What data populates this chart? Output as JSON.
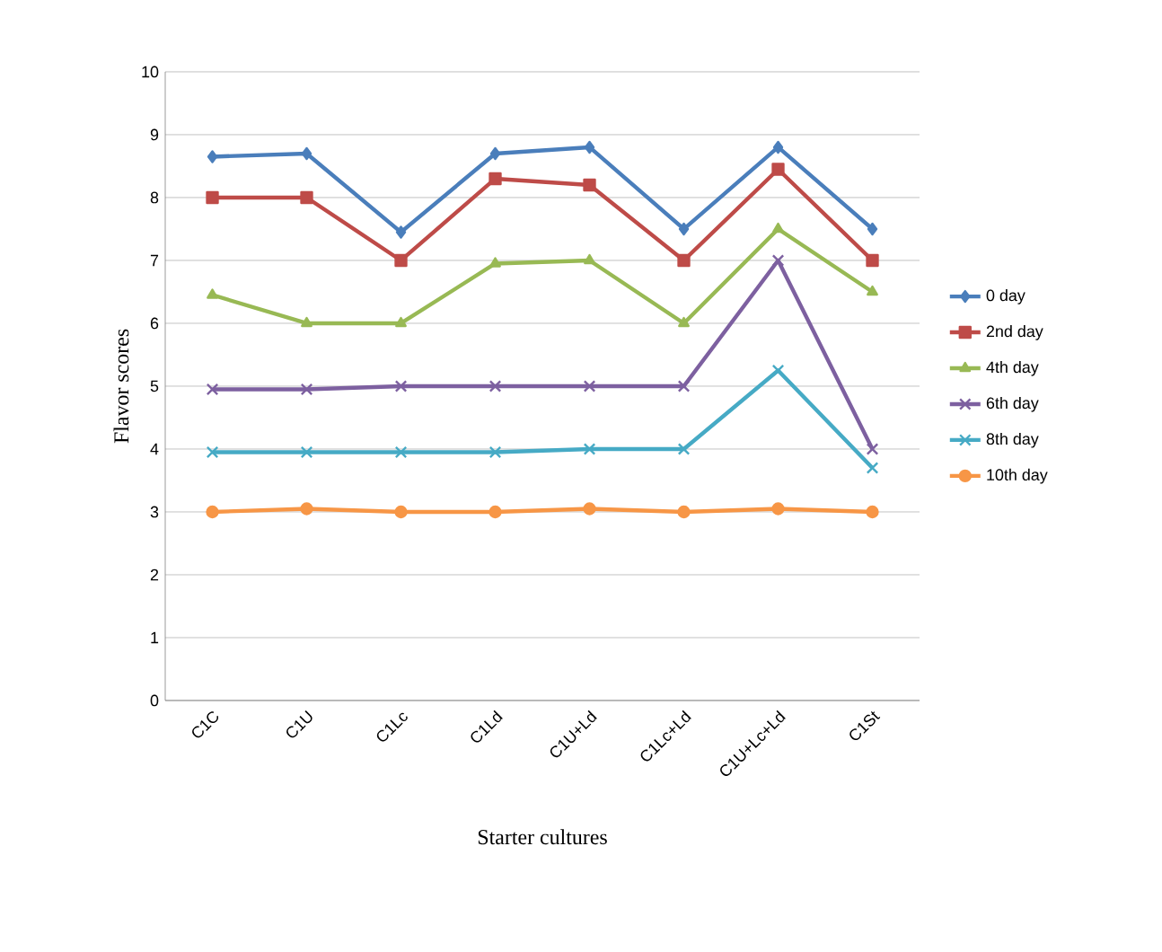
{
  "chart_data": {
    "type": "line",
    "xlabel": "Starter cultures",
    "ylabel": "Flavor scores",
    "categories": [
      "C1C",
      "C1U",
      "C1Lc",
      "C1Ld",
      "C1U+Ld",
      "C1Lc+Ld",
      "C1U+Lc+Ld",
      "C1St"
    ],
    "ylim": [
      0,
      10
    ],
    "yticks": [
      0,
      1,
      2,
      3,
      4,
      5,
      6,
      7,
      8,
      9,
      10
    ],
    "grid": "y",
    "legend": "right",
    "line_style": "solid",
    "series": [
      {
        "name": "0 day",
        "color": "#4a7ebb",
        "marker": "diamond",
        "values": [
          8.65,
          8.7,
          7.45,
          8.7,
          8.8,
          7.5,
          8.8,
          7.5
        ]
      },
      {
        "name": "2nd day",
        "color": "#be4b48",
        "marker": "square",
        "values": [
          8.0,
          8.0,
          7.0,
          8.3,
          8.2,
          7.0,
          8.45,
          7.0
        ]
      },
      {
        "name": "4th day",
        "color": "#98b954",
        "marker": "triangle",
        "values": [
          6.45,
          6.0,
          6.0,
          6.95,
          7.0,
          6.0,
          7.5,
          6.5
        ]
      },
      {
        "name": "6th day",
        "color": "#7d60a0",
        "marker": "cross",
        "values": [
          4.95,
          4.95,
          5.0,
          5.0,
          5.0,
          5.0,
          7.0,
          4.0
        ]
      },
      {
        "name": "8th day",
        "color": "#46aac5",
        "marker": "cross",
        "values": [
          3.95,
          3.95,
          3.95,
          3.95,
          4.0,
          4.0,
          5.25,
          3.7
        ]
      },
      {
        "name": "10th day",
        "color": "#f79646",
        "marker": "circle",
        "values": [
          3.0,
          3.05,
          3.0,
          3.0,
          3.05,
          3.0,
          3.05,
          3.0
        ]
      }
    ]
  }
}
